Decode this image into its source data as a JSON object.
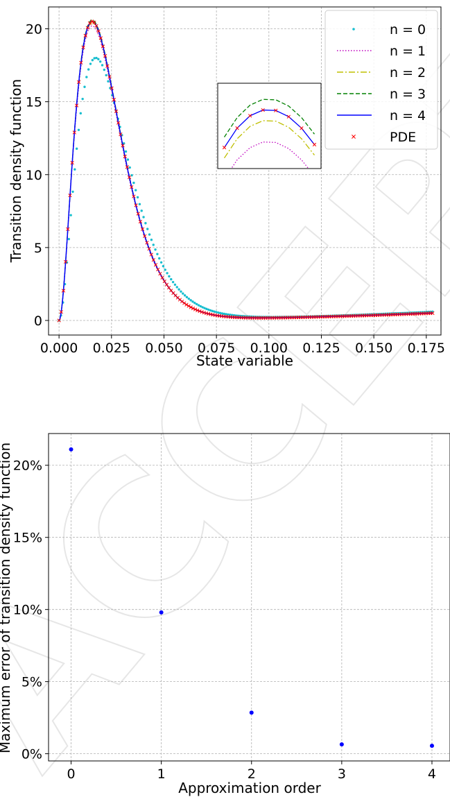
{
  "watermark": "ACCEPTED MANUSCRIPT",
  "chart_data": [
    {
      "type": "line",
      "xlabel": "State variable",
      "ylabel": "Transition density function",
      "xlim": [
        -0.005,
        0.182
      ],
      "ylim": [
        -1,
        21.5
      ],
      "xticks": [
        0.0,
        0.025,
        0.05,
        0.075,
        0.1,
        0.125,
        0.15,
        0.175
      ],
      "xtick_labels": [
        "0.000",
        "0.025",
        "0.050",
        "0.075",
        "0.100",
        "0.125",
        "0.150",
        "0.175"
      ],
      "yticks": [
        0,
        5,
        10,
        15,
        20
      ],
      "ytick_labels": [
        "0",
        "5",
        "10",
        "15",
        "20"
      ],
      "grid": true,
      "legend_position": "top-right",
      "inset": true,
      "x_range": [
        0.0,
        0.178
      ],
      "series": [
        {
          "name": "n = 0",
          "style": "dots",
          "color": "#17becf",
          "peak_x": 0.0175,
          "peak_y": 18.0,
          "tail_y": 0.6
        },
        {
          "name": "n = 1",
          "style": "dotted",
          "color": "#bf00bf",
          "peak_x": 0.0158,
          "peak_y": 20.2,
          "tail_y": 0.5
        },
        {
          "name": "n = 2",
          "style": "dashdot",
          "color": "#bfbf00",
          "peak_x": 0.0158,
          "peak_y": 20.4,
          "tail_y": 0.5
        },
        {
          "name": "n = 3",
          "style": "dashed",
          "color": "#008000",
          "peak_x": 0.0158,
          "peak_y": 20.6,
          "tail_y": 0.5
        },
        {
          "name": "n = 4",
          "style": "solid",
          "color": "#0000ff",
          "peak_x": 0.0158,
          "peak_y": 20.5,
          "tail_y": 0.5
        },
        {
          "name": "PDE",
          "style": "x-markers",
          "color": "#ff0000",
          "peak_x": 0.0158,
          "peak_y": 20.5,
          "tail_y": 0.5
        }
      ]
    },
    {
      "type": "scatter",
      "xlabel": "Approximation order",
      "ylabel": "Maximum error of transition density function",
      "xlim": [
        -0.25,
        4.2
      ],
      "ylim": [
        -0.5,
        22.2
      ],
      "x": [
        0,
        1,
        2,
        3,
        4
      ],
      "y": [
        21.1,
        9.8,
        2.85,
        0.65,
        0.55
      ],
      "y_unit": "%",
      "xticks": [
        0,
        1,
        2,
        3,
        4
      ],
      "xtick_labels": [
        "0",
        "1",
        "2",
        "3",
        "4"
      ],
      "yticks": [
        0,
        5,
        10,
        15,
        20
      ],
      "ytick_labels": [
        "0%",
        "5%",
        "10%",
        "15%",
        "20%"
      ],
      "grid": true,
      "color": "#0000ff"
    }
  ]
}
